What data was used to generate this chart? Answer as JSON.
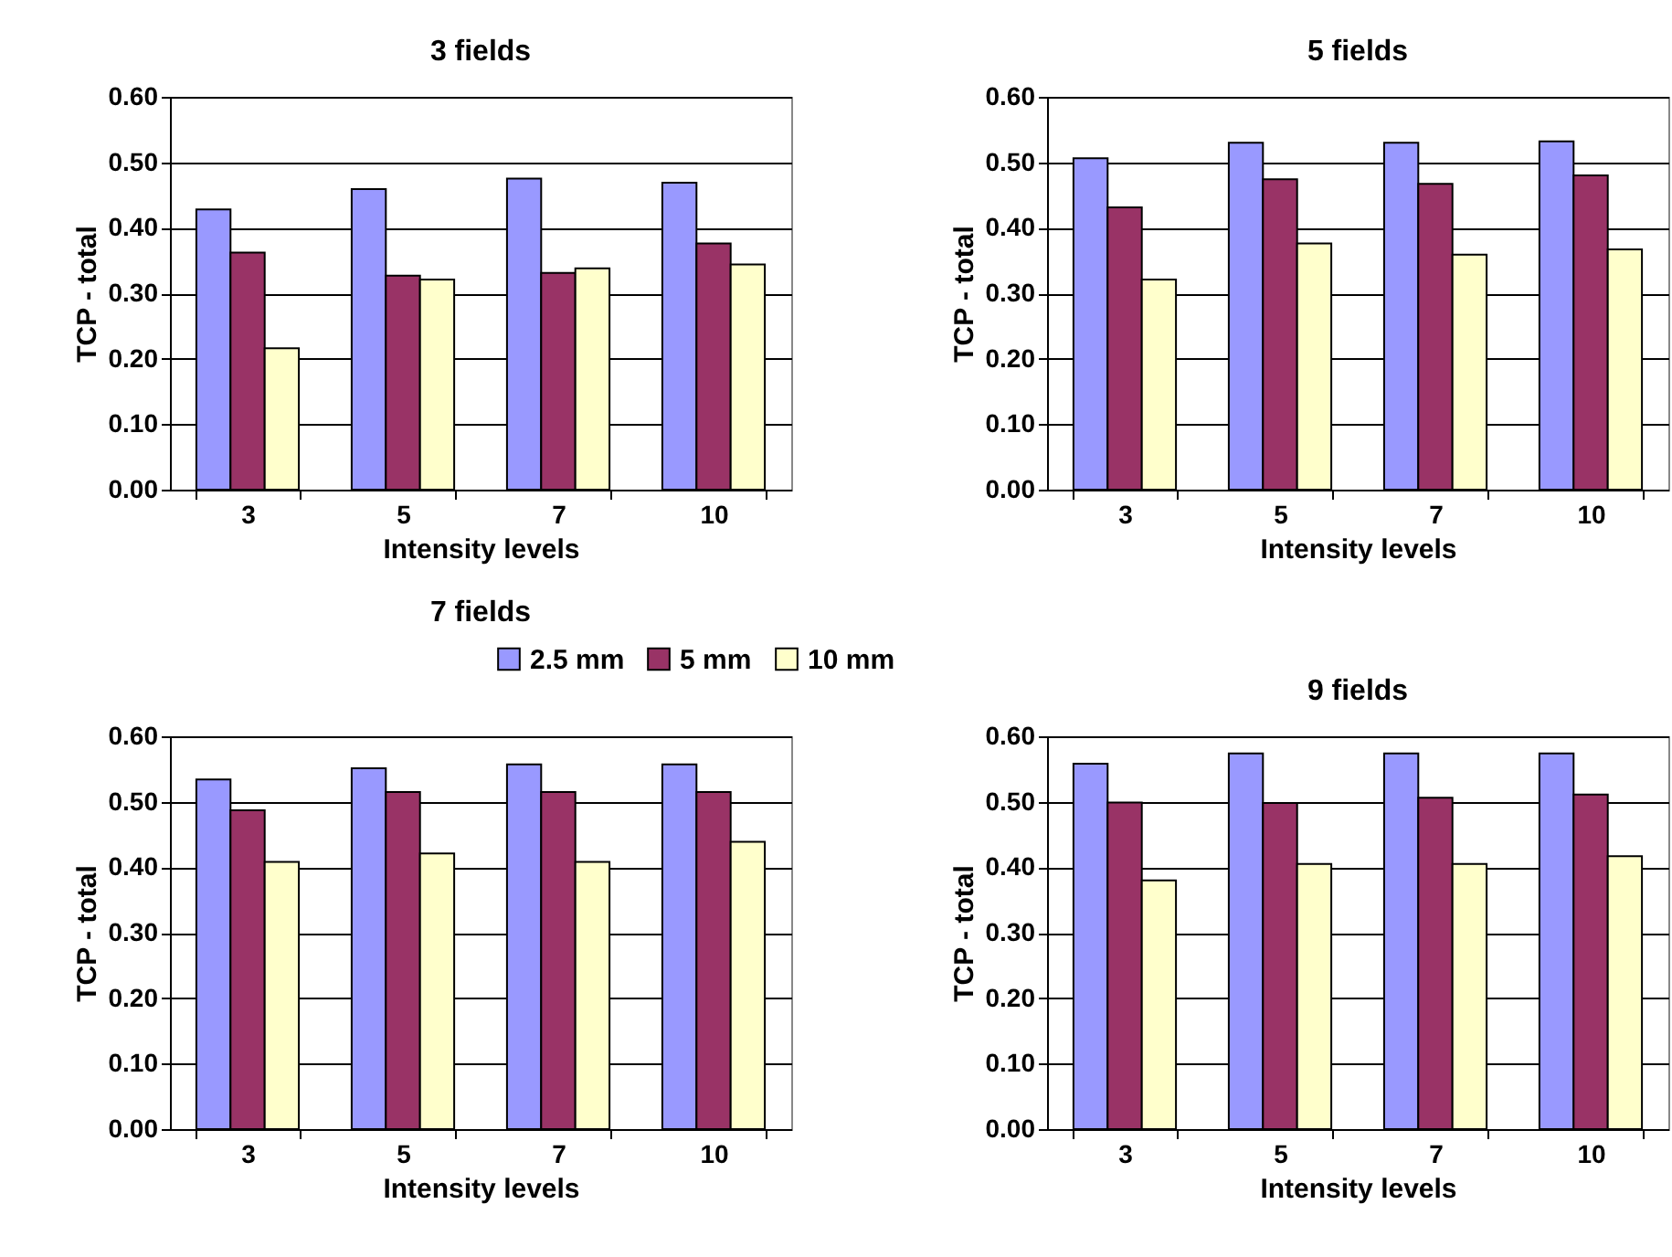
{
  "chart_data": [
    {
      "type": "bar",
      "title": "3 fields",
      "xlabel": "Intensity levels",
      "ylabel": "TCP - total",
      "categories": [
        "3",
        "5",
        "7",
        "10"
      ],
      "ylim": [
        0,
        0.6
      ],
      "yticks": [
        {
          "value": 0,
          "label": "0.00"
        },
        {
          "value": 0.1,
          "label": "0.10"
        },
        {
          "value": 0.2,
          "label": "0.20"
        },
        {
          "value": 0.3,
          "label": "0.30"
        },
        {
          "value": 0.4,
          "label": "0.40"
        },
        {
          "value": 0.5,
          "label": "0.50"
        },
        {
          "value": 0.6,
          "label": "0.60"
        }
      ],
      "grid": "y",
      "series": [
        {
          "color": "#9999ff",
          "values": [
            0.428,
            0.459,
            0.475,
            0.469
          ]
        },
        {
          "color": "#993366",
          "values": [
            0.362,
            0.327,
            0.331,
            0.376
          ]
        },
        {
          "color": "#ffffcc",
          "values": [
            0.216,
            0.321,
            0.338,
            0.344
          ]
        }
      ]
    },
    {
      "type": "bar",
      "title": "5 fields",
      "xlabel": "Intensity levels",
      "ylabel": "TCP - total",
      "categories": [
        "3",
        "5",
        "7",
        "10"
      ],
      "ylim": [
        0,
        0.6
      ],
      "yticks": [
        {
          "value": 0,
          "label": "0.00"
        },
        {
          "value": 0.1,
          "label": "0.10"
        },
        {
          "value": 0.2,
          "label": "0.20"
        },
        {
          "value": 0.3,
          "label": "0.30"
        },
        {
          "value": 0.4,
          "label": "0.40"
        },
        {
          "value": 0.5,
          "label": "0.50"
        },
        {
          "value": 0.6,
          "label": "0.60"
        }
      ],
      "grid": "y",
      "series": [
        {
          "color": "#9999ff",
          "values": [
            0.506,
            0.53,
            0.53,
            0.532
          ]
        },
        {
          "color": "#993366",
          "values": [
            0.431,
            0.474,
            0.467,
            0.48
          ]
        },
        {
          "color": "#ffffcc",
          "values": [
            0.321,
            0.376,
            0.359,
            0.367
          ]
        }
      ]
    },
    {
      "type": "bar",
      "title": "7 fields",
      "xlabel": "Intensity levels",
      "ylabel": "TCP - total",
      "categories": [
        "3",
        "5",
        "7",
        "10"
      ],
      "ylim": [
        0,
        0.6
      ],
      "yticks": [
        {
          "value": 0,
          "label": "0.00"
        },
        {
          "value": 0.1,
          "label": "0.10"
        },
        {
          "value": 0.2,
          "label": "0.20"
        },
        {
          "value": 0.3,
          "label": "0.30"
        },
        {
          "value": 0.4,
          "label": "0.40"
        },
        {
          "value": 0.5,
          "label": "0.50"
        },
        {
          "value": 0.6,
          "label": "0.60"
        }
      ],
      "grid": "y",
      "legend": "top right",
      "series": [
        {
          "name": "2.5 mm",
          "color": "#9999ff",
          "values": [
            0.534,
            0.551,
            0.557,
            0.557
          ]
        },
        {
          "name": "5 mm",
          "color": "#993366",
          "values": [
            0.487,
            0.515,
            0.515,
            0.515
          ]
        },
        {
          "name": "10 mm",
          "color": "#ffffcc",
          "values": [
            0.408,
            0.421,
            0.408,
            0.439
          ]
        }
      ]
    },
    {
      "type": "bar",
      "title": "9 fields",
      "xlabel": "Intensity levels",
      "ylabel": "TCP - total",
      "categories": [
        "3",
        "5",
        "7",
        "10"
      ],
      "ylim": [
        0,
        0.6
      ],
      "yticks": [
        {
          "value": 0,
          "label": "0.00"
        },
        {
          "value": 0.1,
          "label": "0.10"
        },
        {
          "value": 0.2,
          "label": "0.20"
        },
        {
          "value": 0.3,
          "label": "0.30"
        },
        {
          "value": 0.4,
          "label": "0.40"
        },
        {
          "value": 0.5,
          "label": "0.50"
        },
        {
          "value": 0.6,
          "label": "0.60"
        }
      ],
      "grid": "y",
      "series": [
        {
          "color": "#9999ff",
          "values": [
            0.558,
            0.574,
            0.574,
            0.574
          ]
        },
        {
          "color": "#993366",
          "values": [
            0.499,
            0.498,
            0.506,
            0.511
          ]
        },
        {
          "color": "#ffffcc",
          "values": [
            0.38,
            0.405,
            0.405,
            0.417
          ]
        }
      ]
    }
  ]
}
